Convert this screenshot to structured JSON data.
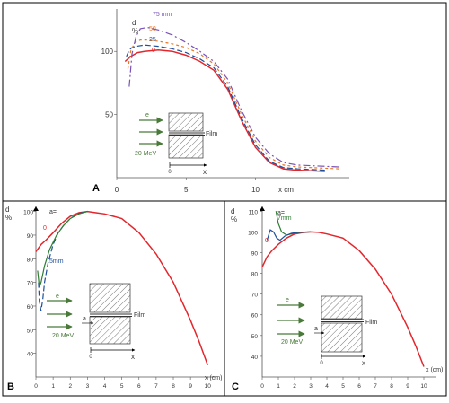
{
  "chart_data": [
    {
      "panel": "A",
      "type": "line",
      "ylabel_lines": [
        "d",
        "%"
      ],
      "xlabel": "x cm",
      "xticks": [
        0,
        5,
        10
      ],
      "yticks": [
        50,
        100
      ],
      "xlim": [
        0,
        16.5
      ],
      "ylim": [
        0,
        130
      ],
      "series": [
        {
          "name": "0",
          "color": "#e3262c",
          "dash": "",
          "x": [
            0.6,
            1.0,
            1.5,
            2.0,
            3.0,
            4.0,
            5.0,
            6.0,
            7.0,
            8.0,
            9.0,
            10.0,
            11.0,
            12.0,
            13.0,
            14.0,
            15.0
          ],
          "y": [
            92,
            96,
            99,
            100,
            101,
            100,
            97,
            92,
            85,
            70,
            45,
            24,
            12,
            7,
            6,
            5.5,
            5
          ]
        },
        {
          "name": "25",
          "color": "#1e4f9a",
          "dash": "6 3",
          "x": [
            0.7,
            0.9,
            1.1,
            1.4,
            2.0,
            3.0,
            4.0,
            5.0,
            6.0,
            7.0,
            8.0,
            9.0,
            10.0,
            11.0,
            12.0,
            13.0,
            14.0,
            15.0
          ],
          "y": [
            96,
            101,
            103,
            104,
            105,
            104,
            102,
            99,
            94,
            87,
            72,
            47,
            26,
            13,
            8,
            7,
            6.5,
            6
          ]
        },
        {
          "name": "50",
          "color": "#e87722",
          "dash": "3 3",
          "x": [
            0.8,
            1.0,
            1.3,
            1.7,
            2.2,
            3.0,
            4.0,
            5.0,
            6.0,
            7.0,
            8.0,
            9.0,
            10.0,
            11.0,
            12.0,
            13.0,
            14.0,
            15.0,
            16.0
          ],
          "y": [
            86,
            100,
            107,
            109,
            109,
            108,
            106,
            103,
            98,
            90,
            75,
            50,
            29,
            16,
            10,
            8.5,
            8,
            7.5,
            7
          ]
        },
        {
          "name": "75 mm",
          "color": "#7b52b8",
          "dash": "8 3 2 3",
          "x": [
            0.9,
            1.1,
            1.4,
            1.7,
            2.2,
            3.0,
            4.0,
            5.0,
            6.0,
            7.0,
            8.0,
            9.0,
            10.0,
            11.0,
            12.0,
            13.0,
            14.0,
            15.0,
            16.0
          ],
          "y": [
            72,
            98,
            112,
            118,
            119,
            117,
            113,
            107,
            100,
            92,
            78,
            53,
            32,
            19,
            12,
            10,
            9.5,
            9,
            8.5
          ]
        }
      ],
      "inset": {
        "beam_energy": "20 MeV",
        "particle": "e",
        "film_label": "Film",
        "origin_label": "0",
        "axis_label": "x"
      }
    },
    {
      "panel": "B",
      "type": "line",
      "ylabel_lines": [
        "d",
        "%"
      ],
      "xlabel": "x (cm)",
      "xticks": [
        0,
        1,
        2,
        3,
        4,
        5,
        6,
        7,
        8,
        9,
        10
      ],
      "yticks": [
        40,
        50,
        60,
        70,
        80,
        90,
        100
      ],
      "xlim": [
        0,
        10.3
      ],
      "ylim": [
        30,
        101
      ],
      "series_label_prefix": "a=",
      "series": [
        {
          "name": "0",
          "color": "#e3262c",
          "dash": "",
          "x": [
            0,
            0.3,
            0.6,
            1.0,
            1.5,
            2.0,
            2.5,
            3.0,
            3.5,
            4.0,
            5.0,
            6.0,
            7.0,
            8.0,
            9.0,
            9.5,
            10.0
          ],
          "y": [
            83,
            86,
            88,
            91,
            95,
            98,
            99.5,
            100,
            99.5,
            99,
            97,
            91,
            82,
            70,
            54,
            45,
            35
          ]
        },
        {
          "name": "5mm",
          "color": "#1e4f9a",
          "dash": "6 3",
          "x": [
            0.15,
            0.2,
            0.3,
            0.4,
            0.5,
            0.7,
            1.0,
            1.3,
            1.6,
            2.0,
            2.4,
            2.8,
            3.0
          ],
          "y": [
            70,
            62,
            58,
            63,
            70,
            78,
            86,
            91,
            94,
            97,
            99,
            99.8,
            100
          ]
        },
        {
          "name": "",
          "color": "#2e7d32",
          "dash": "",
          "x": [
            0.1,
            0.2,
            0.3,
            0.5,
            0.8,
            1.2,
            1.6,
            2.0,
            2.5,
            3.0
          ],
          "y": [
            75,
            68,
            70,
            77,
            84,
            90,
            94,
            97,
            99,
            100
          ]
        }
      ],
      "inset": {
        "beam_energy": "20 MeV",
        "particle": "e",
        "film_label": "Film",
        "gap_label": "a",
        "origin_label": "0",
        "axis_label": "x"
      }
    },
    {
      "panel": "C",
      "type": "line",
      "ylabel_lines": [
        "d",
        "%"
      ],
      "xlabel": "x (cm)",
      "xticks": [
        0,
        1,
        2,
        3,
        4,
        5,
        6,
        7,
        8,
        9,
        10
      ],
      "yticks": [
        40,
        50,
        60,
        70,
        80,
        90,
        100,
        110
      ],
      "xlim": [
        0,
        10.5
      ],
      "ylim": [
        30,
        111
      ],
      "series_label_prefix": "a=",
      "series": [
        {
          "name": "0",
          "color": "#e3262c",
          "dash": "",
          "x": [
            0,
            0.3,
            0.6,
            1.0,
            1.5,
            2.0,
            2.5,
            3.0,
            3.5,
            4.0,
            5.0,
            6.0,
            7.0,
            8.0,
            9.0,
            9.5,
            10.0
          ],
          "y": [
            83,
            88,
            91,
            94,
            97,
            99,
            99.7,
            100,
            99.8,
            99,
            97,
            91,
            82,
            70,
            54,
            45,
            35
          ]
        },
        {
          "name": "7mm",
          "color": "#2e7d32",
          "dash": "",
          "x": [
            0.85,
            1.0,
            1.2,
            1.5,
            1.8,
            2.2,
            2.6,
            3.0
          ],
          "y": [
            110,
            104,
            100,
            98.5,
            99,
            99.6,
            99.9,
            100
          ]
        },
        {
          "name": "",
          "color": "#1e4f9a",
          "dash": "",
          "x": [
            0.3,
            0.5,
            0.7,
            0.9,
            1.1,
            1.4,
            1.8,
            2.2,
            3.0
          ],
          "y": [
            96,
            101,
            100,
            97,
            96,
            98,
            99.3,
            99.8,
            100
          ]
        }
      ],
      "inset": {
        "beam_energy": "20 MeV",
        "particle": "e",
        "film_label": "Film",
        "gap_label": "a",
        "origin_label": "0",
        "axis_label": "x"
      }
    }
  ],
  "panel_labels": [
    "A",
    "B",
    "C"
  ],
  "colors": {
    "border": "#000000",
    "axis": "#555555",
    "arrow": "#4a7a3a",
    "hatch": "#555555"
  }
}
